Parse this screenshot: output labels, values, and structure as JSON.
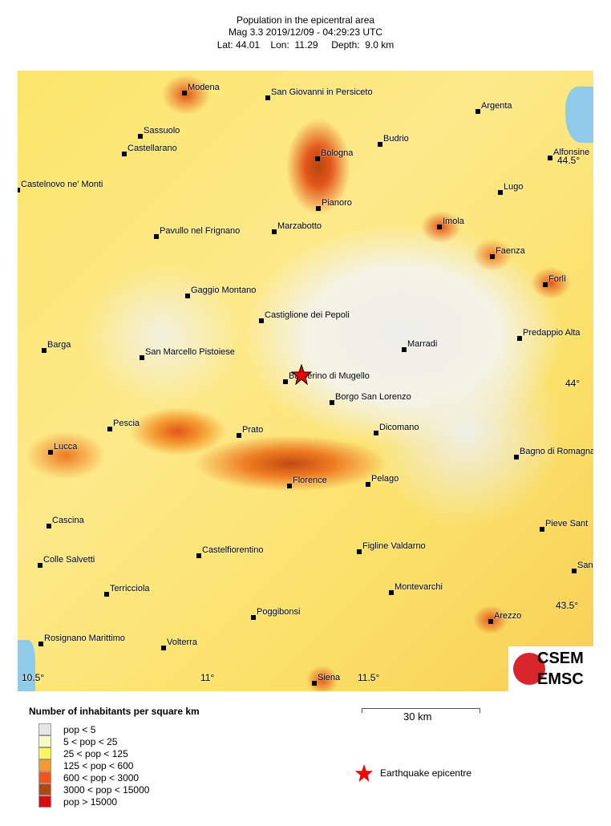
{
  "header": {
    "title": "Population in the epicentral area",
    "line2": "Mag 3.3  2019/12/09 - 04:29:23 UTC",
    "line3": "Lat: 44.01    Lon:  11.29     Depth:  9.0 km"
  },
  "map": {
    "cities": [
      "Modena",
      "San Giovanni in Persiceto",
      "Argenta",
      "Sassuolo",
      "Budrio",
      "Castellarano",
      "Bologna",
      "Alfonsine",
      "Castelnovo ne' Monti",
      "Lugo",
      "Pianoro",
      "Imola",
      "Marzabotto",
      "Pavullo nel Frignano",
      "Faenza",
      "Forlì",
      "Gaggio Montano",
      "Castiglione dei Pepoli",
      "Predappio Alta",
      "Barga",
      "Marradi",
      "San Marcello Pistoiese",
      "Barberino di Mugello",
      "Borgo San Lorenzo",
      "Pescia",
      "Dicomano",
      "Prato",
      "Lucca",
      "Bagno di Romagna",
      "Florence",
      "Pelago",
      "Cascina",
      "Pieve Sant",
      "Figline Valdarno",
      "Castelfiorentino",
      "Colle Salvetti",
      "San",
      "Terricciola",
      "Montevarchi",
      "Poggibonsi",
      "Arezzo",
      "Rosignano Marittimo",
      "Volterra",
      "Siena"
    ],
    "lat_labels": [
      "44.5°",
      "44°",
      "43.5°"
    ],
    "lon_labels": [
      "10.5°",
      "11°",
      "11.5°"
    ],
    "epicentre_color": "#ff0000"
  },
  "logo": {
    "top": "CSEM",
    "bottom": "EMSC"
  },
  "legend": {
    "title": "Number of inhabitants per square km",
    "items": [
      {
        "label": "pop < 5",
        "color": "#e6e6e4"
      },
      {
        "label": "5 < pop < 25",
        "color": "#fbf8c8"
      },
      {
        "label": "25 < pop < 125",
        "color": "#fbf560"
      },
      {
        "label": "125 < pop < 600",
        "color": "#f59a30"
      },
      {
        "label": "600 < pop < 3000",
        "color": "#f05418"
      },
      {
        "label": "3000 < pop < 15000",
        "color": "#b04814"
      },
      {
        "label": "pop > 15000",
        "color": "#d80c0c"
      }
    ],
    "epicentre_label": "Earthquake epicentre"
  },
  "scale": {
    "label": "30 km"
  }
}
